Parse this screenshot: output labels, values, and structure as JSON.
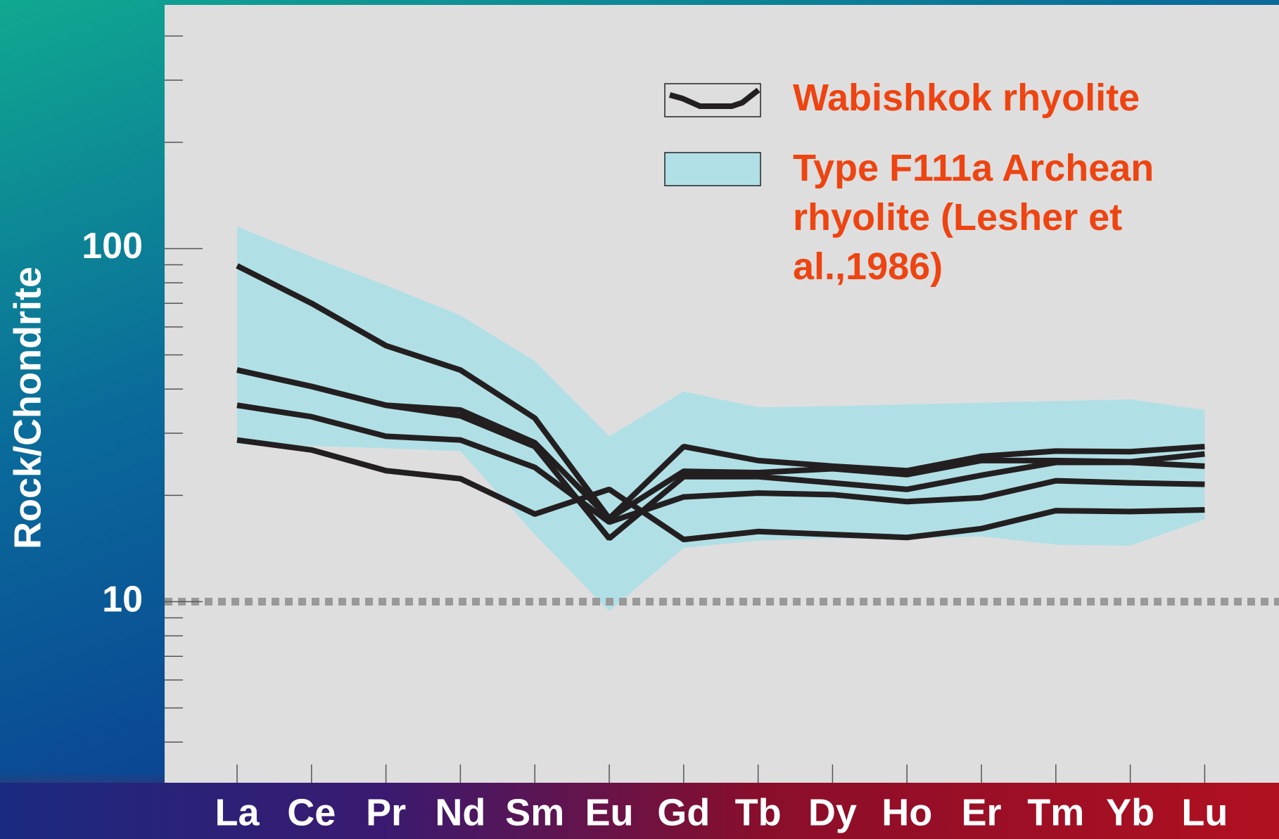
{
  "chart_data": {
    "type": "line",
    "ylabel": "Rock/Chondrite",
    "log_y": true,
    "categories": [
      "La",
      "Ce",
      "Pr",
      "Nd",
      "Sm",
      "Eu",
      "Gd",
      "Tb",
      "Dy",
      "Ho",
      "Er",
      "Tm",
      "Yb",
      "Lu"
    ],
    "ylim": [
      3.07,
      490
    ],
    "yticks": [
      10,
      100
    ],
    "minor_yticks": [
      4,
      5,
      6,
      7,
      8,
      9,
      20,
      30,
      40,
      50,
      60,
      70,
      80,
      90,
      200,
      300,
      400
    ],
    "hline": {
      "value": 10,
      "color": "#999999"
    },
    "series": [
      {
        "name": "Wabishkok rhyolite",
        "color": "#231f20",
        "samples": [
          [
            89.4,
            70.0,
            53.1,
            45.3,
            33.1,
            17.2,
            27.5,
            25.1,
            24.2,
            23.5,
            25.8,
            26.7,
            26.6,
            27.5
          ],
          [
            45.3,
            40.7,
            36.0,
            34.9,
            28.2,
            17.2,
            23.4,
            23.2,
            23.8,
            22.9,
            25.1,
            25.1,
            24.9,
            26.2
          ],
          [
            45.3,
            40.7,
            36.0,
            33.6,
            27.5,
            15.1,
            22.6,
            22.6,
            21.7,
            20.8,
            22.8,
            24.8,
            24.8,
            24.2
          ],
          [
            36.0,
            33.4,
            29.4,
            28.7,
            24.0,
            16.8,
            19.8,
            20.3,
            20.1,
            19.2,
            19.7,
            22.0,
            21.7,
            21.5
          ],
          [
            28.7,
            26.9,
            23.5,
            22.3,
            17.7,
            20.8,
            15.0,
            15.8,
            15.5,
            15.2,
            16.1,
            18.1,
            18.0,
            18.2
          ]
        ]
      }
    ],
    "band": {
      "name": "Type F111a Archean rhyolite (Lesher et al.,1986)",
      "color": "#b0e0e6",
      "upper": [
        115.5,
        94.8,
        78.7,
        64.7,
        48.0,
        29.4,
        39.4,
        35.5,
        35.8,
        36.2,
        36.6,
        37.0,
        37.4,
        34.9
      ],
      "lower": [
        27.9,
        27.6,
        27.2,
        26.7,
        15.5,
        9.4,
        14.2,
        14.9,
        15.1,
        15.1,
        15.3,
        14.5,
        14.4,
        17.1
      ]
    }
  }
}
